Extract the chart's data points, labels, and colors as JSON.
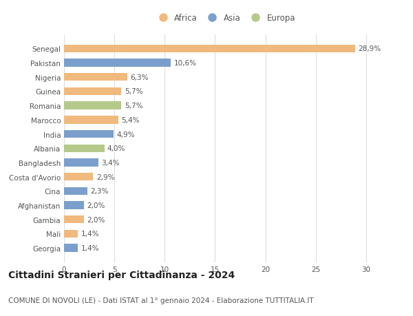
{
  "countries": [
    "Georgia",
    "Mali",
    "Gambia",
    "Afghanistan",
    "Cina",
    "Costa d'Avorio",
    "Bangladesh",
    "Albania",
    "India",
    "Marocco",
    "Romania",
    "Guinea",
    "Nigeria",
    "Pakistan",
    "Senegal"
  ],
  "values": [
    1.4,
    1.4,
    2.0,
    2.0,
    2.3,
    2.9,
    3.4,
    4.0,
    4.9,
    5.4,
    5.7,
    5.7,
    6.3,
    10.6,
    28.9
  ],
  "labels": [
    "1,4%",
    "1,4%",
    "2,0%",
    "2,0%",
    "2,3%",
    "2,9%",
    "3,4%",
    "4,0%",
    "4,9%",
    "5,4%",
    "5,7%",
    "5,7%",
    "6,3%",
    "10,6%",
    "28,9%"
  ],
  "continents": [
    "Asia",
    "Africa",
    "Africa",
    "Asia",
    "Asia",
    "Africa",
    "Asia",
    "Europa",
    "Asia",
    "Africa",
    "Europa",
    "Africa",
    "Africa",
    "Asia",
    "Africa"
  ],
  "colors": {
    "Africa": "#F0B97D",
    "Asia": "#7B9FCC",
    "Europa": "#B5C98A"
  },
  "legend_order": [
    "Africa",
    "Asia",
    "Europa"
  ],
  "title": "Cittadini Stranieri per Cittadinanza - 2024",
  "subtitle": "COMUNE DI NOVOLI (LE) - Dati ISTAT al 1° gennaio 2024 - Elaborazione TUTTITALIA.IT",
  "xlim": [
    0,
    32
  ],
  "xticks": [
    0,
    5,
    10,
    15,
    20,
    25,
    30
  ],
  "background_color": "#ffffff",
  "grid_color": "#dddddd",
  "title_fontsize": 10,
  "subtitle_fontsize": 7.5,
  "label_fontsize": 7.5,
  "tick_fontsize": 7.5,
  "legend_fontsize": 8.5,
  "bar_height": 0.55
}
